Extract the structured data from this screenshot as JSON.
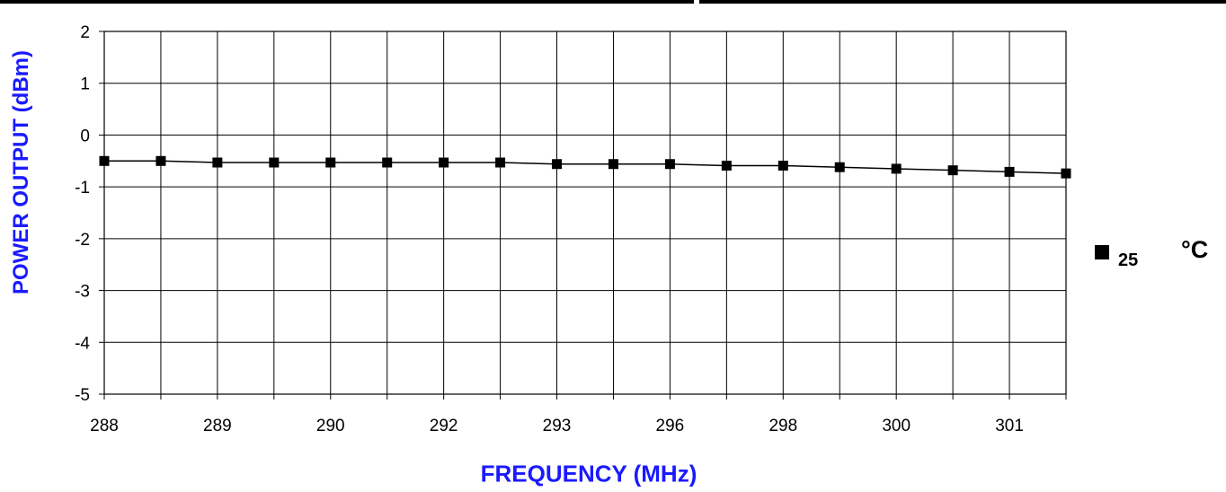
{
  "chart_data": {
    "type": "line",
    "xlabel": "FREQUENCY (MHz)",
    "ylabel": "POWER OUTPUT (dBm)",
    "ylim": [
      -5,
      2
    ],
    "yticks": [
      "2",
      "1",
      "0",
      "-1",
      "-2",
      "-3",
      "-4",
      "-5"
    ],
    "categories": [
      "288",
      "",
      "289",
      "",
      "290",
      "",
      "292",
      "",
      "293",
      "",
      "296",
      "",
      "298",
      "",
      "300",
      "",
      "301",
      ""
    ],
    "grid": true,
    "legend_position": "right",
    "series": [
      {
        "name": "25",
        "unit": "°C",
        "color": "#000000",
        "marker": "square",
        "values": [
          -0.5,
          -0.5,
          -0.53,
          -0.53,
          -0.53,
          -0.53,
          -0.53,
          -0.53,
          -0.56,
          -0.56,
          -0.56,
          -0.59,
          -0.59,
          -0.62,
          -0.65,
          -0.68,
          -0.71,
          -0.74
        ]
      }
    ]
  }
}
